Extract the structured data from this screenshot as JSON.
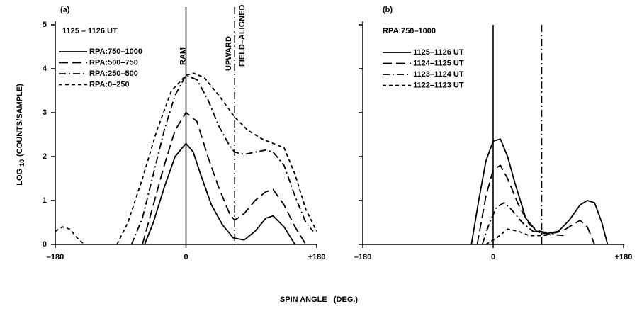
{
  "xlabel": "SPIN ANGLE   (DEG.)",
  "chart_data": [
    {
      "type": "line",
      "panel_label": "(a)",
      "subtitle": "1125 – 1126 UT",
      "ylabel": [
        "LOG",
        "10",
        "(COUNTS/SAMPLE)"
      ],
      "xlim": [
        -180,
        180
      ],
      "ylim": [
        0,
        5
      ],
      "xticks": [
        {
          "value": -180,
          "label": "–180"
        },
        0,
        {
          "value": 180,
          "label": "+180"
        }
      ],
      "yticks": [
        0,
        1,
        2,
        3,
        4,
        5
      ],
      "ytick_labels": true,
      "markers": [
        {
          "x": 0,
          "style": "solid",
          "labels": [
            "RAM"
          ]
        },
        {
          "x": 67,
          "style": "dashdot",
          "labels": [
            "UPWARD",
            "FIELD–ALIGNED"
          ]
        }
      ],
      "series": [
        {
          "name": "RPA:750–1000",
          "color": "#000000",
          "style": "solid",
          "x": [
            -57,
            -45,
            -30,
            -15,
            0,
            10,
            20,
            35,
            50,
            65,
            80,
            95,
            110,
            120,
            135,
            150
          ],
          "values": [
            0,
            0.5,
            1.3,
            2.0,
            2.3,
            2.1,
            1.6,
            0.9,
            0.45,
            0.15,
            0.1,
            0.3,
            0.6,
            0.65,
            0.4,
            0
          ]
        },
        {
          "name": "RPA:500–750",
          "color": "#000000",
          "style": "dashed",
          "x": [
            -60,
            -45,
            -30,
            -15,
            0,
            15,
            30,
            45,
            60,
            67,
            80,
            95,
            110,
            120,
            135,
            150,
            165
          ],
          "values": [
            0,
            0.9,
            1.8,
            2.6,
            3.0,
            2.8,
            2.0,
            1.3,
            0.7,
            0.55,
            0.7,
            1.0,
            1.2,
            1.25,
            0.9,
            0.4,
            0
          ]
        },
        {
          "name": "RPA:250–500",
          "color": "#000000",
          "style": "dashdot",
          "x": [
            -75,
            -60,
            -45,
            -30,
            -15,
            0,
            15,
            30,
            45,
            60,
            67,
            80,
            95,
            110,
            120,
            135,
            150,
            165,
            175
          ],
          "values": [
            0,
            0.6,
            1.6,
            2.6,
            3.4,
            3.85,
            3.75,
            3.3,
            2.7,
            2.25,
            2.1,
            2.05,
            2.1,
            2.15,
            2.1,
            1.8,
            1.1,
            0.5,
            0.3
          ]
        },
        {
          "name": "RPA:0–250",
          "color": "#000000",
          "style": "dotted",
          "x": [
            -180,
            -170,
            -160,
            -150,
            -140,
            -120,
            -95,
            -80,
            -60,
            -40,
            -20,
            0,
            10,
            25,
            45,
            67,
            85,
            105,
            120,
            135,
            150,
            165,
            180
          ],
          "values": [
            0.3,
            0.4,
            0.35,
            0.15,
            0,
            null,
            0,
            0.5,
            1.5,
            2.6,
            3.5,
            3.85,
            3.9,
            3.8,
            3.4,
            2.9,
            2.6,
            2.4,
            2.3,
            2.2,
            1.6,
            0.8,
            0.3
          ]
        }
      ]
    },
    {
      "type": "line",
      "panel_label": "(b)",
      "subtitle": "RPA:750–1000",
      "xlim": [
        -180,
        180
      ],
      "ylim": [
        0,
        5
      ],
      "xticks": [
        {
          "value": -180,
          "label": "–180"
        },
        0,
        {
          "value": 180,
          "label": "+180"
        }
      ],
      "yticks": [
        0,
        1,
        2,
        3,
        4,
        5
      ],
      "ytick_labels": false,
      "markers": [
        {
          "x": 0,
          "style": "solid",
          "labels": []
        },
        {
          "x": 67,
          "style": "dashdot",
          "labels": []
        }
      ],
      "series": [
        {
          "name": "1125–1126 UT",
          "color": "#000000",
          "style": "solid",
          "x": [
            -30,
            -20,
            -10,
            0,
            10,
            20,
            30,
            45,
            60,
            75,
            90,
            105,
            120,
            130,
            140,
            150,
            158
          ],
          "values": [
            0,
            1.0,
            1.9,
            2.35,
            2.4,
            2.0,
            1.4,
            0.6,
            0.3,
            0.25,
            0.3,
            0.55,
            0.9,
            1.0,
            0.95,
            0.5,
            0
          ]
        },
        {
          "name": "1124–1125 UT",
          "color": "#000000",
          "style": "dashed",
          "x": [
            -22,
            -10,
            0,
            10,
            20,
            35,
            50,
            65,
            80,
            95,
            110,
            120,
            130,
            140
          ],
          "values": [
            0,
            1.1,
            1.7,
            1.8,
            1.5,
            0.9,
            0.45,
            0.3,
            0.25,
            0.3,
            0.45,
            0.55,
            0.4,
            0
          ]
        },
        {
          "name": "1123–1124 UT",
          "color": "#000000",
          "style": "dashdot",
          "x": [
            -15,
            -5,
            5,
            15,
            25,
            40,
            55,
            70,
            85,
            100
          ],
          "values": [
            0,
            0.5,
            0.85,
            0.95,
            0.8,
            0.5,
            0.3,
            0.25,
            0.22,
            0.2
          ]
        },
        {
          "name": "1122–1123 UT",
          "color": "#000000",
          "style": "dotted",
          "x": [
            -10,
            5,
            20,
            35,
            50,
            65,
            80
          ],
          "values": [
            0,
            0.15,
            0.35,
            0.3,
            0.2,
            0.2,
            0.22
          ]
        }
      ]
    }
  ]
}
